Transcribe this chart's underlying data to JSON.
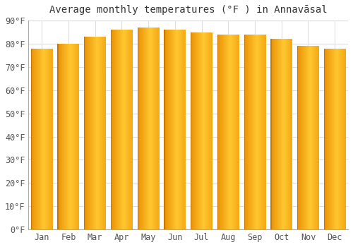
{
  "title": "Average monthly temperatures (°F ) in Annavāsal",
  "months": [
    "Jan",
    "Feb",
    "Mar",
    "Apr",
    "May",
    "Jun",
    "Jul",
    "Aug",
    "Sep",
    "Oct",
    "Nov",
    "Dec"
  ],
  "values": [
    78,
    80,
    83,
    86,
    87,
    86,
    85,
    84,
    84,
    82,
    79,
    78
  ],
  "bar_color_left": "#E8900A",
  "bar_color_mid": "#F5A623",
  "bar_color_right": "#FFD060",
  "background_color": "#ffffff",
  "plot_bg_color": "#ffffff",
  "ylim": [
    0,
    90
  ],
  "ytick_step": 10,
  "title_fontsize": 10,
  "tick_fontsize": 8.5,
  "grid_color": "#dddddd",
  "bar_width": 0.82
}
